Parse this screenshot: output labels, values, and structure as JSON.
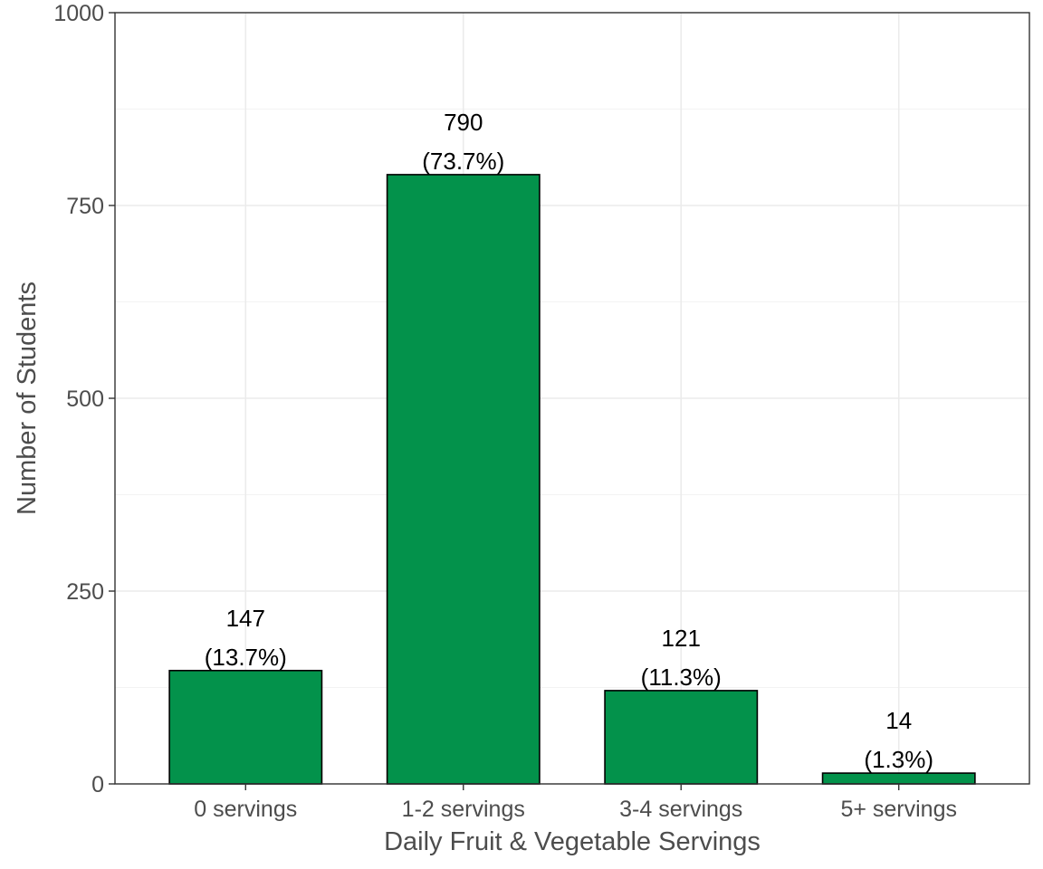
{
  "chart_data": {
    "type": "bar",
    "categories": [
      "0 servings",
      "1-2 servings",
      "3-4 servings",
      "5+ servings"
    ],
    "values": [
      147,
      790,
      121,
      14
    ],
    "labels": [
      {
        "count": "147",
        "percent": "(13.7%)"
      },
      {
        "count": "790",
        "percent": "(73.7%)"
      },
      {
        "count": "121",
        "percent": "(11.3%)"
      },
      {
        "count": "14",
        "percent": "(1.3%)"
      }
    ],
    "title": "",
    "xlabel": "Daily Fruit & Vegetable Servings",
    "ylabel": "Number of Students",
    "ylim": [
      0,
      1000
    ],
    "yticks": [
      0,
      250,
      500,
      750,
      1000
    ],
    "grid": true,
    "bar_color": "#03924B",
    "bar_outline": "#000000"
  }
}
